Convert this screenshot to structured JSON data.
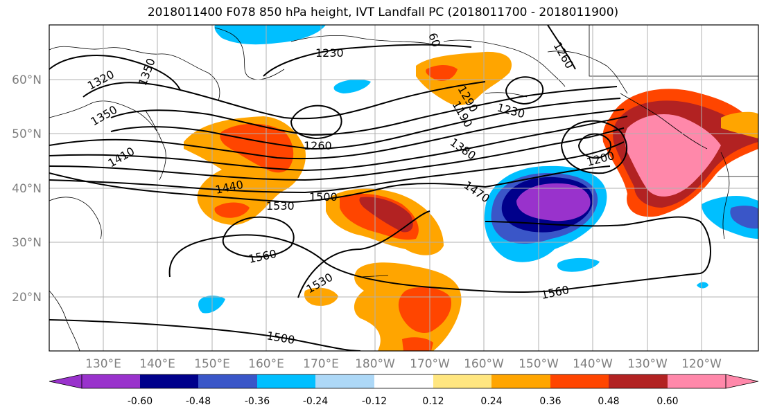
{
  "title": "2018011400 F078 850 hPa height, IVT Landfall PC (2018011700 - 2018011900)",
  "lat_ticks": [
    "60°N",
    "50°N",
    "40°N",
    "30°N",
    "20°N"
  ],
  "lon_ticks": [
    "130°E",
    "140°E",
    "150°E",
    "160°E",
    "170°E",
    "180°W",
    "170°W",
    "160°W",
    "150°W",
    "140°W",
    "130°W",
    "120°W"
  ],
  "contour_labels": [
    "1230",
    "1260",
    "1320",
    "1350",
    "1410",
    "1440",
    "1530",
    "1500",
    "1380",
    "1190",
    "1470",
    "1230",
    "1260",
    "1560",
    "1530",
    "1560",
    "1500",
    "1200",
    "1350",
    "1290",
    "60"
  ],
  "colorbar": {
    "colors": [
      "#9932cc",
      "#00008b",
      "#3a56c8",
      "#00bfff",
      "#add8f7",
      "#ffffff",
      "#ffe680",
      "#ffa500",
      "#ff4500",
      "#b22222",
      "#ff88aa"
    ],
    "tick_labels": [
      "-0.60",
      "-0.48",
      "-0.36",
      "-0.24",
      "-0.12",
      "0.12",
      "0.24",
      "0.36",
      "0.48",
      "0.60"
    ]
  },
  "colors": {
    "contour": "#000000",
    "coast": "#000000",
    "grid": "#b0b0b0",
    "tick_text": "#7f7f7f"
  }
}
